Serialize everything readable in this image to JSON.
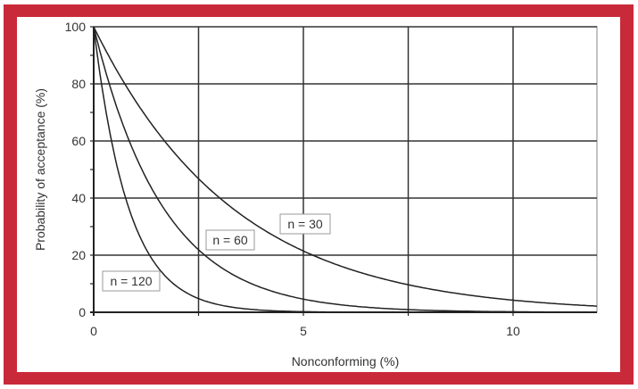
{
  "colors": {
    "frame": "#c92a3a",
    "grid": "#333333",
    "curve": "#222222",
    "background": "#ffffff"
  },
  "chart_data": {
    "type": "line",
    "title": "",
    "xlabel": "Nonconforming (%)",
    "ylabel": "Probability of acceptance (%)",
    "xlim": [
      0,
      12
    ],
    "ylim": [
      0,
      100
    ],
    "xticks": [
      0,
      5,
      10
    ],
    "yticks": [
      0,
      20,
      40,
      60,
      80,
      100
    ],
    "grid": true,
    "legend": "inline labels",
    "x": [
      0,
      0.5,
      1,
      1.5,
      2,
      2.5,
      3,
      4,
      5,
      6,
      7,
      8,
      9,
      10,
      11,
      12
    ],
    "series": [
      {
        "name": "n = 30",
        "values": [
          100,
          86.0,
          74.0,
          63.5,
          54.5,
          46.8,
          40.1,
          29.4,
          21.5,
          15.6,
          11.3,
          8.2,
          5.9,
          4.2,
          3.0,
          2.2
        ]
      },
      {
        "name": "n = 60",
        "values": [
          100,
          74.0,
          54.7,
          40.4,
          29.8,
          21.9,
          16.1,
          8.6,
          4.6,
          2.4,
          1.3,
          0.7,
          0.3,
          0.2,
          0.1,
          0.0
        ]
      },
      {
        "name": "n = 120",
        "values": [
          100,
          54.8,
          29.9,
          16.3,
          8.9,
          4.8,
          2.6,
          0.7,
          0.2,
          0.1,
          0.0,
          0.0,
          0.0,
          0.0,
          0.0,
          0.0
        ]
      }
    ],
    "annotations": [
      "n = 30",
      "n = 60",
      "n = 120"
    ]
  },
  "labels": {
    "xlabel": "Nonconforming (%)",
    "ylabel": "Probability of acceptance (%)",
    "n30": "n = 30",
    "n60": "n = 60",
    "n120": "n = 120",
    "xticks": [
      "0",
      "5",
      "10"
    ],
    "yticks": [
      "0",
      "20",
      "40",
      "60",
      "80",
      "100"
    ]
  }
}
